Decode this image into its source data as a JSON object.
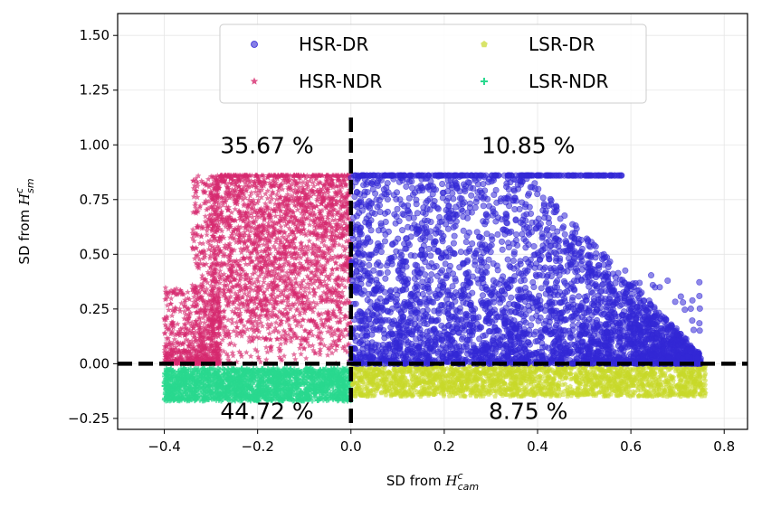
{
  "chart_data": {
    "type": "scatter",
    "title": "",
    "xlabel": {
      "prefix": "SD from ",
      "symbol": "H",
      "superscript": "c",
      "subscript": "cam"
    },
    "ylabel": {
      "prefix": "SD from ",
      "symbol": "H",
      "superscript": "c",
      "subscript": "sm"
    },
    "xlim": [
      -0.5,
      0.85
    ],
    "ylim": [
      -0.3,
      1.6
    ],
    "xticks": [
      -0.4,
      -0.2,
      0.0,
      0.2,
      0.4,
      0.6,
      0.8
    ],
    "xtick_labels": [
      "−0.4",
      "−0.2",
      "0.0",
      "0.2",
      "0.4",
      "0.6",
      "0.8"
    ],
    "yticks": [
      -0.25,
      0.0,
      0.25,
      0.5,
      0.75,
      1.0,
      1.25,
      1.5
    ],
    "ytick_labels": [
      "−0.25",
      "0.00",
      "0.25",
      "0.50",
      "0.75",
      "1.00",
      "1.25",
      "1.50"
    ],
    "grid": true,
    "legend_placement": "top-center",
    "reference_lines": {
      "x": 0.0,
      "y": 0.0,
      "style": "dashed",
      "color": "#000000"
    },
    "series": [
      {
        "name": "HSR-DR",
        "marker": "circle",
        "color": "#3328d6",
        "region": {
          "x": [
            0.0,
            0.75
          ],
          "y": [
            0.0,
            0.86
          ],
          "max_y": 0.86
        }
      },
      {
        "name": "HSR-NDR",
        "marker": "star",
        "color": "#d62a6e",
        "region": {
          "x": [
            -0.4,
            0.0
          ],
          "y": [
            0.0,
            0.86
          ],
          "max_y": 0.86
        }
      },
      {
        "name": "LSR-DR",
        "marker": "pentagon",
        "color": "#c8d92a",
        "region": {
          "x": [
            0.0,
            0.76
          ],
          "y": [
            -0.16,
            0.0
          ]
        }
      },
      {
        "name": "LSR-NDR",
        "marker": "plus",
        "color": "#2ad98f",
        "region": {
          "x": [
            -0.4,
            0.0
          ],
          "y": [
            -0.17,
            0.0
          ]
        }
      }
    ],
    "annotations": [
      {
        "text": "35.67 %",
        "x": -0.18,
        "y": 1.0,
        "quadrant": "top-left"
      },
      {
        "text": "10.85 %",
        "x": 0.38,
        "y": 1.0,
        "quadrant": "top-right"
      },
      {
        "text": "44.72 %",
        "x": -0.18,
        "y": -0.215,
        "quadrant": "bottom-left"
      },
      {
        "text": "8.75 %",
        "x": 0.38,
        "y": -0.215,
        "quadrant": "bottom-right"
      }
    ]
  }
}
